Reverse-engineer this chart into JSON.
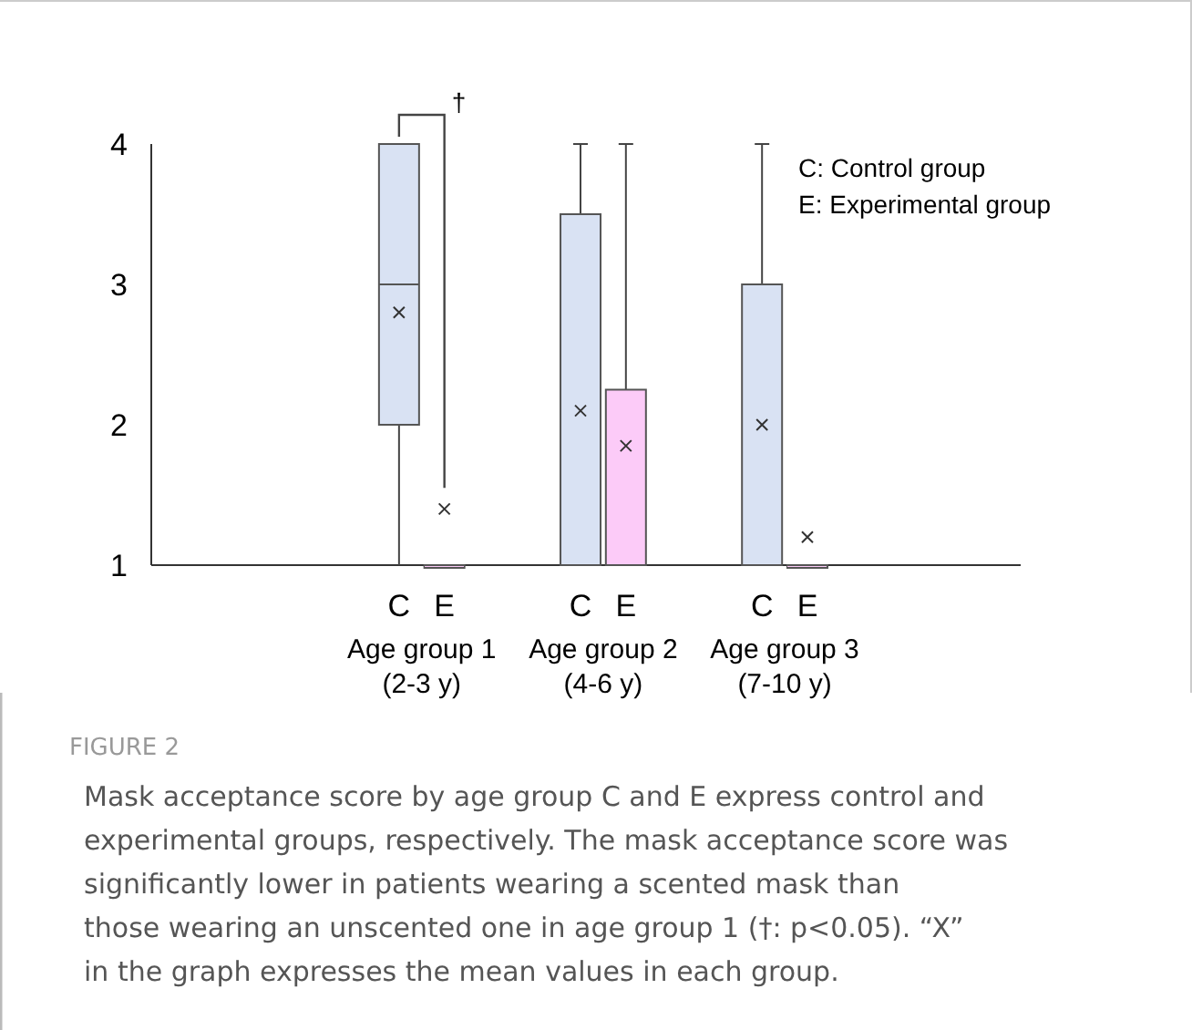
{
  "chart_data": {
    "type": "box",
    "title": "FIGURE 2",
    "categories": [
      "Age group 1\n(2-3 y)",
      "Age group 2\n(4-6 y)",
      "Age group 3\n(7-10 y)"
    ],
    "series": [
      {
        "name": "C",
        "color": "#d9e2f3",
        "boxes": [
          {
            "low": 1,
            "q1": 2,
            "median": 3,
            "q3": 4,
            "high": 4,
            "mean": 2.8
          },
          {
            "low": 1,
            "q1": 1,
            "median": 1,
            "q3": 3.5,
            "high": 4,
            "mean": 2.1
          },
          {
            "low": 1,
            "q1": 1,
            "median": 1,
            "q3": 3,
            "high": 4,
            "mean": 2.0
          }
        ]
      },
      {
        "name": "E",
        "color": "#fccbf8",
        "boxes": [
          {
            "low": 1,
            "q1": 1,
            "median": 1,
            "q3": 1,
            "high": 1,
            "mean": 1.4
          },
          {
            "low": 1,
            "q1": 1,
            "median": 1,
            "q3": 2.25,
            "high": 4,
            "mean": 1.85
          },
          {
            "low": 1,
            "q1": 1,
            "median": 1,
            "q3": 1,
            "high": 1,
            "mean": 1.2
          }
        ]
      }
    ],
    "ylim": [
      1,
      4
    ],
    "yticks": [
      1,
      2,
      3,
      4
    ],
    "annotations": [
      "C: Control group\nE: Experimental group",
      "†",
      "Mask acceptance score by age group C and E express control and experimental groups, respectively. The mask acceptance score was significantly lower in patients wearing a scented mask than those wearing an unscented one in age group 1 (†: p<0.05). “X” in the graph expresses the mean values in each group."
    ]
  }
}
